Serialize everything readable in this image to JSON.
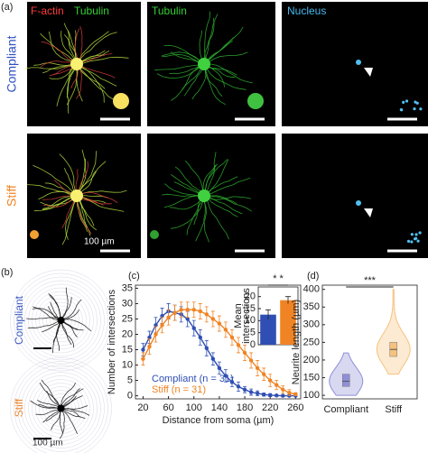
{
  "panel_a": {
    "label": "(a)",
    "col1_labels": [
      "F-actin",
      "Tubulin"
    ],
    "col2_label": "Tubulin",
    "col3_label": "Nucleus",
    "rows": [
      "Compliant",
      "Stiff"
    ],
    "scale_bar": "100 µm"
  },
  "panel_b": {
    "label": "(b)",
    "rows": [
      "Compliant",
      "Stiff"
    ],
    "scale_bar": "100 µm"
  },
  "chart_data": [
    {
      "type": "line",
      "label": "(c)",
      "xlabel": "Distance from soma (µm)",
      "ylabel": "Number of intersections",
      "x": [
        20,
        30,
        40,
        50,
        60,
        70,
        80,
        90,
        100,
        110,
        120,
        130,
        140,
        150,
        160,
        170,
        180,
        190,
        200,
        210,
        220,
        230,
        240,
        250,
        260
      ],
      "xlim": [
        8,
        268
      ],
      "xticks": [
        20,
        60,
        100,
        140,
        180,
        220,
        260
      ],
      "ylim": [
        -1,
        36
      ],
      "yticks": [
        0,
        5,
        10,
        15,
        20,
        25,
        30,
        35
      ],
      "series": [
        {
          "name": "Compliant (n = 31)",
          "color": "#2f4fb4",
          "values": [
            15,
            19,
            23,
            26,
            27.5,
            27,
            26.5,
            25,
            22,
            19,
            15.5,
            12,
            9,
            6.5,
            4.5,
            3,
            2,
            1.2,
            0.8,
            0.4,
            0.2,
            0.1,
            0,
            0,
            0
          ],
          "errors": [
            2,
            2,
            2.5,
            2.5,
            2.5,
            2.5,
            2.5,
            2.5,
            2.5,
            2.5,
            2.5,
            2,
            2,
            2,
            1.5,
            1.5,
            1,
            1,
            0.8,
            0.5,
            0.5,
            0.3,
            0.2,
            0.2,
            0.1
          ]
        },
        {
          "name": "Stiff (n = 31)",
          "color": "#f08424",
          "values": [
            12,
            16,
            20,
            23,
            25.5,
            27,
            28,
            28,
            28,
            27.5,
            26.5,
            25,
            23.5,
            21.5,
            19,
            16.5,
            14,
            11.5,
            9,
            7,
            5,
            3.5,
            2,
            1,
            0.5
          ],
          "errors": [
            2,
            2.5,
            2.5,
            2.5,
            2.5,
            2.5,
            2.5,
            2.5,
            2.5,
            2.5,
            2.5,
            2.5,
            2.5,
            2.5,
            2.5,
            2.5,
            2.5,
            2.5,
            2.5,
            2,
            2,
            1.5,
            1.2,
            1,
            0.5
          ]
        }
      ]
    },
    {
      "type": "bar",
      "ylabel_lines": [
        "Mean",
        "intersections"
      ],
      "categories": [
        null,
        null
      ],
      "values": [
        12.5,
        18.5
      ],
      "errors": [
        2,
        1.5
      ],
      "colors": [
        "#2f4fb4",
        "#f08424"
      ],
      "ylim": [
        0,
        24
      ],
      "yticks": [
        0,
        5,
        10,
        15,
        20
      ],
      "annotation": "* *"
    },
    {
      "type": "violin",
      "label": "(d)",
      "ylabel": "Neurite length (µm)",
      "categories": [
        "Compliant",
        "Stiff"
      ],
      "ylim": [
        90,
        412
      ],
      "yticks": [
        100,
        150,
        200,
        250,
        300,
        350,
        400
      ],
      "annotation": "***",
      "series": [
        {
          "color": "#8f8fd8",
          "min": 100,
          "q1": 125,
          "median": 140,
          "q3": 160,
          "max": 220
        },
        {
          "color": "#f5c27f",
          "min": 160,
          "q1": 210,
          "median": 230,
          "q3": 250,
          "max": 400
        }
      ]
    }
  ]
}
